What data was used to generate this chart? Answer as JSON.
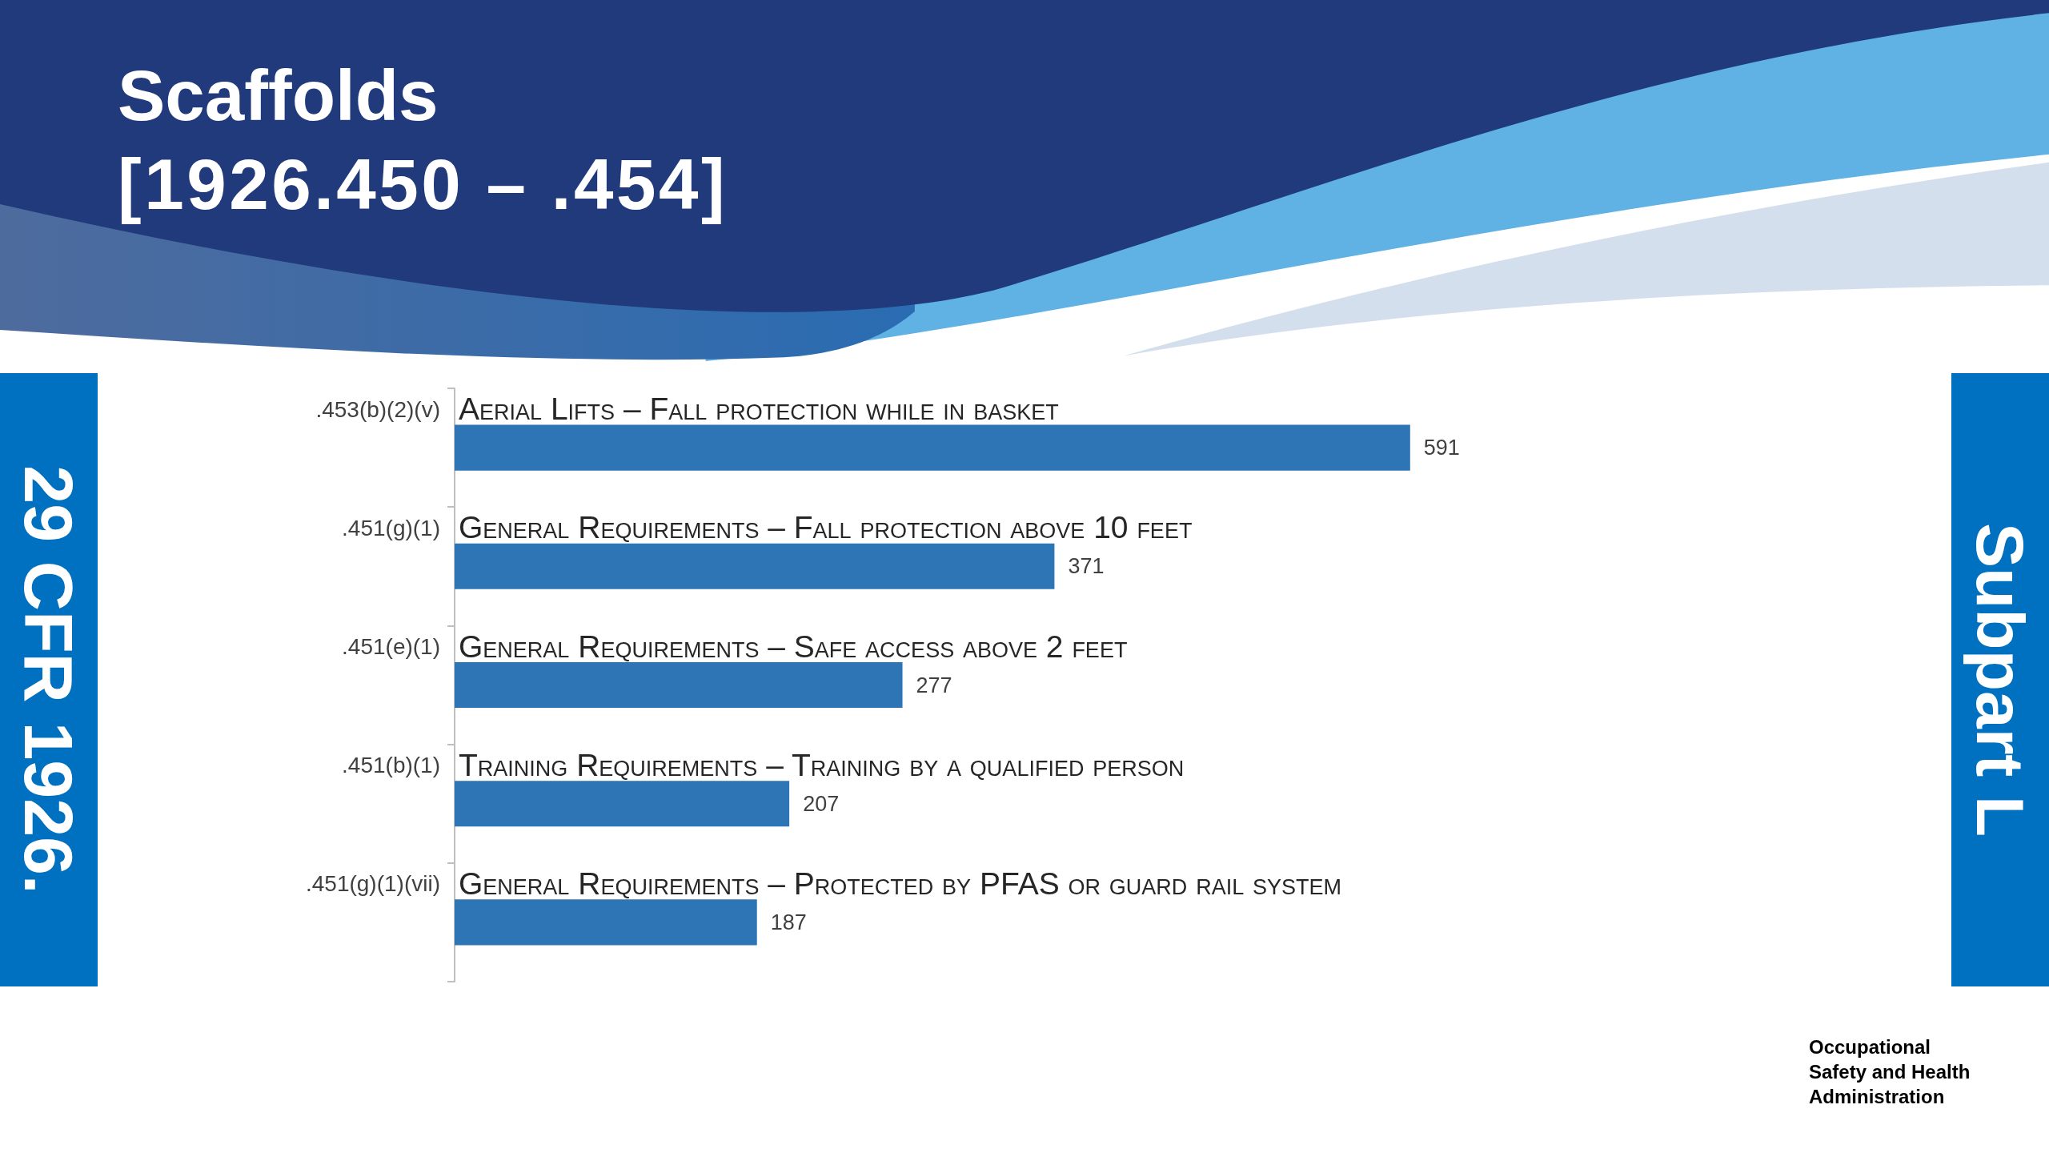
{
  "chart_data": {
    "type": "bar",
    "orientation": "horizontal",
    "title": "Scaffolds",
    "subtitle": "[1926.450 – .454]",
    "categories": [
      ".453(b)(2)(v)",
      ".451(g)(1)",
      ".451(e)(1)",
      ".451(b)(1)",
      ".451(g)(1)(vii)"
    ],
    "values": [
      591,
      371,
      277,
      207,
      187
    ],
    "color": "#2e75b6",
    "data_labels": true,
    "tick_labels": "y",
    "grid": false,
    "annotations": [
      "Aerial Lifts – Fall protection while in basket",
      "General Requirements – Fall protection above 10 feet",
      "General Requirements – Safe access above 2 feet",
      "Training Requirements – Training by a qualified person",
      "General Requirements – Protected by PFAS or guard rail system",
      "29 CFR 1926.",
      "Subpart L",
      "Occupational Safety and Health Administration"
    ]
  }
}
